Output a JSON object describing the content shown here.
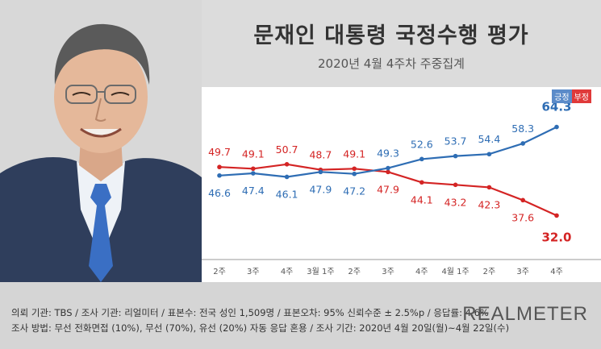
{
  "header": {
    "title": "문재인 대통령 국정수행 평가",
    "subtitle": "2020년 4월 4주차 주중집계"
  },
  "legend": {
    "positive": "긍정",
    "negative": "부정"
  },
  "footer": {
    "line1": "의뢰 기관:  TBS  /  조사 기관:  리얼미터  /  표본수:  전국 성인 1,509명  /  표본오차:  95% 신뢰수준 ± 2.5%p  /  응답률:  4.6%",
    "line2": "조사 방법:  무선 전화면접 (10%),  무선 (70%),  유선 (20%)  자동 응답 혼용  /  조사 기간:  2020년 4월 20일(월)~4월 22일(수)",
    "logo": "REALMETER"
  },
  "colors": {
    "positive": "#2e6db4",
    "negative": "#d42424",
    "header_bg": "#dcdcdc",
    "footer_bg": "#d5d5d5"
  },
  "chart_data": {
    "type": "line",
    "categories": [
      "2주",
      "3주",
      "4주",
      "3월 1주",
      "2주",
      "3주",
      "4주",
      "4월 1주",
      "2주",
      "3주",
      "4주"
    ],
    "series": [
      {
        "name": "긍정",
        "values": [
          46.6,
          47.4,
          46.1,
          47.9,
          47.2,
          49.3,
          52.6,
          53.7,
          54.4,
          58.3,
          64.3
        ],
        "labels": [
          "46.6",
          "47.4",
          "46.1",
          "47.9",
          "47.2",
          "49.3",
          "52.6",
          "53.7",
          "54.4",
          "58.3",
          "64.3"
        ]
      },
      {
        "name": "부정",
        "values": [
          49.7,
          49.1,
          50.7,
          48.7,
          49.1,
          47.9,
          44.1,
          43.2,
          42.3,
          37.6,
          32.0
        ],
        "labels": [
          "49.7",
          "49.1",
          "50.7",
          "48.7",
          "49.1",
          "47.9",
          "44.1",
          "43.2",
          "42.3",
          "37.6",
          "32.0"
        ]
      }
    ],
    "title": "문재인 대통령 국정수행 평가",
    "legend_position": "top-right"
  }
}
